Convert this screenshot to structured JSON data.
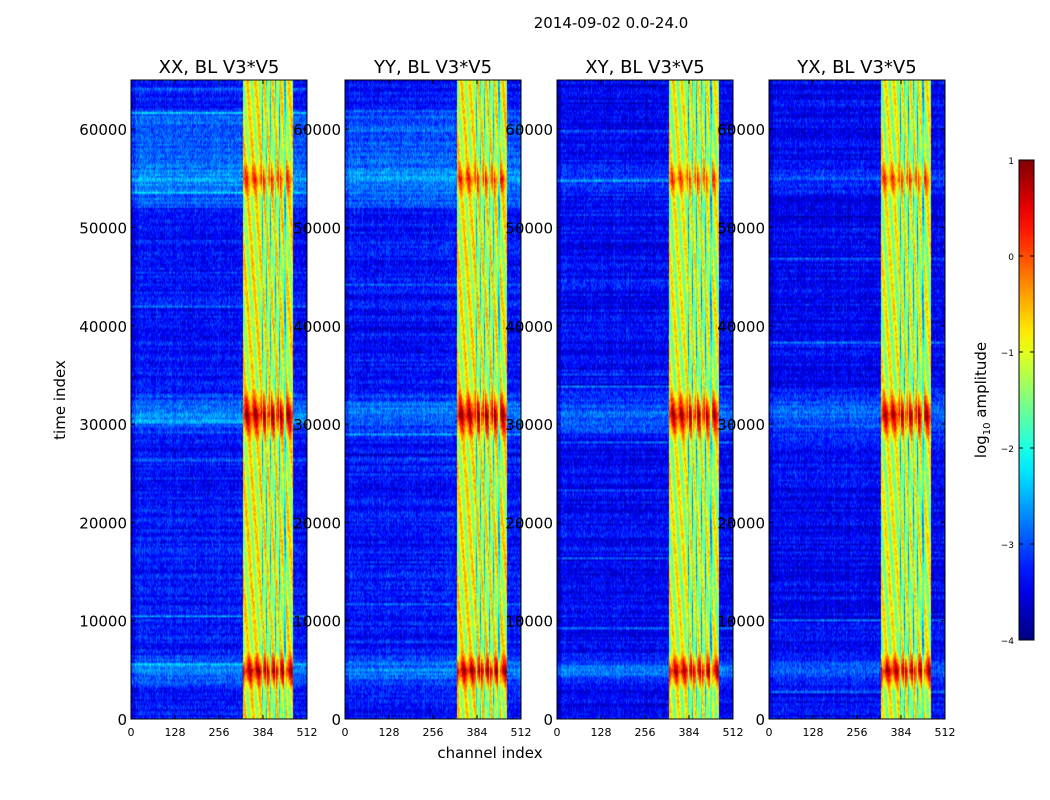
{
  "figure": {
    "suptitle": "2014-09-02 0.0-24.0"
  },
  "chart_data": {
    "type": "heatmap",
    "xlabel": "channel index",
    "ylabel": "time index",
    "xlim": [
      0,
      512
    ],
    "ylim": [
      0,
      65000
    ],
    "x_ticks": [
      0,
      128,
      256,
      384,
      512
    ],
    "y_ticks": [
      0,
      10000,
      20000,
      30000,
      40000,
      50000,
      60000
    ],
    "panels": [
      {
        "title": "XX, BL V3*V5",
        "pol": "XX"
      },
      {
        "title": "YY, BL V3*V5",
        "pol": "YY"
      },
      {
        "title": "XY, BL V3*V5",
        "pol": "XY"
      },
      {
        "title": "YX, BL V3*V5",
        "pol": "YX"
      }
    ],
    "colorbar": {
      "label_prefix": "log",
      "label_sub": "10",
      "label_suffix": " amplitude",
      "range": [
        -4,
        1
      ],
      "ticks": [
        1,
        0,
        -1,
        -2,
        -3,
        -4
      ],
      "tick_labels": [
        "1",
        "0",
        "−1",
        "−2",
        "−3",
        "−4"
      ],
      "colormap": "jet"
    },
    "features": {
      "signal_band_channels": [
        325,
        470
      ],
      "strong_rows_time": [
        31000,
        5000,
        55000
      ]
    }
  }
}
